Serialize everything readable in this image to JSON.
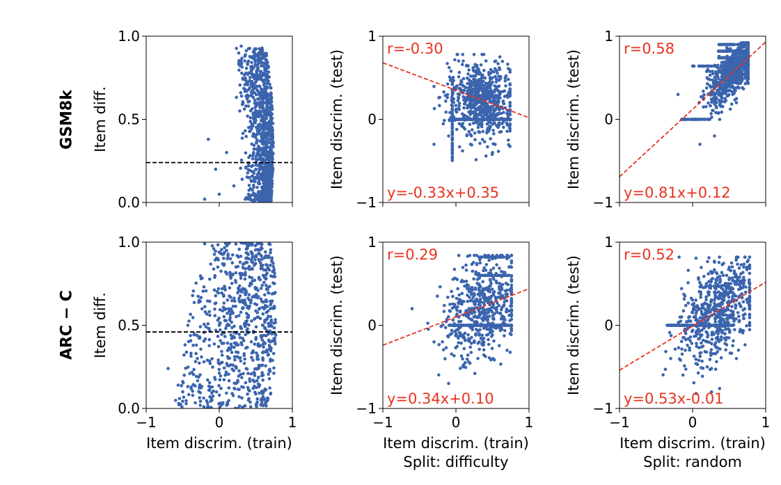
{
  "figure": {
    "row_labels": [
      "GSM8k",
      "ARC − C"
    ],
    "column_titles": [
      "",
      "Split: difficulty",
      "Split: random"
    ],
    "colors": {
      "points": "#3b64ad",
      "fit_line": "#e8321e",
      "threshold_line": "#000000"
    }
  },
  "chart_data": [
    {
      "type": "scatter",
      "row": "GSM8k",
      "col": 0,
      "xlabel": "",
      "ylabel": "Item diff.",
      "xlim": [
        -1,
        1
      ],
      "ylim": [
        0,
        1
      ],
      "xticks": [
        -1,
        0,
        1
      ],
      "yticks": [
        0.0,
        0.5,
        1.0
      ],
      "ytick_labels": [
        "0.0",
        "0.5",
        "1.0"
      ],
      "show_xtick_labels": false,
      "threshold_y": 0.24,
      "cloud": "gsm_diff",
      "points": [
        [
          0.3,
          0.94
        ],
        [
          0.35,
          0.88
        ],
        [
          0.4,
          0.85
        ],
        [
          0.45,
          0.8
        ],
        [
          0.5,
          0.75
        ],
        [
          0.55,
          0.7
        ],
        [
          0.6,
          0.62
        ],
        [
          0.65,
          0.55
        ],
        [
          0.7,
          0.45
        ],
        [
          0.72,
          0.35
        ],
        [
          0.6,
          0.3
        ],
        [
          0.5,
          0.2
        ],
        [
          0.4,
          0.15
        ],
        [
          0.2,
          0.1
        ],
        [
          0.0,
          0.05
        ],
        [
          -0.2,
          0.02
        ],
        [
          -0.15,
          0.38
        ],
        [
          0.1,
          0.3
        ],
        [
          -0.05,
          0.2
        ],
        [
          0.28,
          0.55
        ]
      ]
    },
    {
      "type": "scatter",
      "row": "GSM8k",
      "col": 1,
      "xlabel": "",
      "ylabel": "Item discrim. (test)",
      "xlim": [
        -1,
        1
      ],
      "ylim": [
        -1,
        1
      ],
      "xticks": [
        -1,
        0,
        1
      ],
      "yticks": [
        -1,
        0,
        1
      ],
      "ytick_labels": [
        "−1",
        "0",
        "1"
      ],
      "show_xtick_labels": false,
      "r_text": "r=-0.30",
      "fit_text": "y=-0.33x+0.35",
      "fit": {
        "slope": -0.33,
        "intercept": 0.35
      },
      "cloud": "gsm_diffsplit",
      "points": [
        [
          0.1,
          0.7
        ],
        [
          0.3,
          0.6
        ],
        [
          0.5,
          0.5
        ],
        [
          0.6,
          0.3
        ],
        [
          0.2,
          0.1
        ],
        [
          0.0,
          0.0
        ],
        [
          0.4,
          0.0
        ],
        [
          0.7,
          0.0
        ],
        [
          -0.1,
          -0.2
        ],
        [
          0.2,
          -0.3
        ],
        [
          0.5,
          -0.4
        ],
        [
          -0.3,
          -0.3
        ],
        [
          0.3,
          0.35
        ],
        [
          0.6,
          0.6
        ]
      ]
    },
    {
      "type": "scatter",
      "row": "GSM8k",
      "col": 2,
      "xlabel": "",
      "ylabel": "Item discrim. (test)",
      "xlim": [
        -1,
        1
      ],
      "ylim": [
        -1,
        1
      ],
      "xticks": [
        -1,
        0,
        1
      ],
      "yticks": [
        -1,
        0,
        1
      ],
      "ytick_labels": [
        "−1",
        "0",
        "1"
      ],
      "show_xtick_labels": false,
      "r_text": "r=0.58",
      "fit_text": "y=0.81x+0.12",
      "fit": {
        "slope": 0.81,
        "intercept": 0.12
      },
      "cloud": "gsm_random",
      "points": [
        [
          0.7,
          0.9
        ],
        [
          0.5,
          0.9
        ],
        [
          0.6,
          0.78
        ],
        [
          0.3,
          0.65
        ],
        [
          0.5,
          0.55
        ],
        [
          0.7,
          0.6
        ],
        [
          0.4,
          0.3
        ],
        [
          0.6,
          0.2
        ],
        [
          0.0,
          0.0
        ],
        [
          -0.1,
          0.0
        ],
        [
          0.1,
          -0.3
        ],
        [
          0.3,
          -0.2
        ],
        [
          -0.2,
          0.3
        ]
      ]
    },
    {
      "type": "scatter",
      "row": "ARC − C",
      "col": 0,
      "xlabel": "Item discrim. (train)",
      "ylabel": "Item diff.",
      "xlim": [
        -1,
        1
      ],
      "ylim": [
        0,
        1
      ],
      "xticks": [
        -1,
        0,
        1
      ],
      "yticks": [
        0.0,
        0.5,
        1.0
      ],
      "ytick_labels": [
        "0.0",
        "0.5",
        "1.0"
      ],
      "show_xtick_labels": true,
      "xtick_labels": [
        "−1",
        "0",
        "1"
      ],
      "threshold_y": 0.46,
      "cloud": "arc_diff",
      "points": [
        [
          -0.7,
          0.24
        ],
        [
          -0.5,
          0.1
        ],
        [
          -0.3,
          0.3
        ],
        [
          -0.2,
          0.99
        ],
        [
          0.1,
          0.95
        ],
        [
          0.4,
          0.9
        ],
        [
          0.6,
          0.8
        ],
        [
          0.7,
          0.6
        ],
        [
          0.7,
          0.4
        ],
        [
          0.6,
          0.2
        ],
        [
          0.4,
          0.05
        ],
        [
          0.1,
          0.02
        ],
        [
          -0.1,
          0.05
        ],
        [
          0.0,
          0.5
        ]
      ]
    },
    {
      "type": "scatter",
      "row": "ARC − C",
      "col": 1,
      "xlabel": "Item discrim. (train)",
      "ylabel": "Item discrim. (test)",
      "xlim": [
        -1,
        1
      ],
      "ylim": [
        -1,
        1
      ],
      "xticks": [
        -1,
        0,
        1
      ],
      "yticks": [
        -1,
        0,
        1
      ],
      "ytick_labels": [
        "−1",
        "0",
        "1"
      ],
      "show_xtick_labels": true,
      "xtick_labels": [
        "−1",
        "0",
        "1"
      ],
      "r_text": "r=0.29",
      "fit_text": "y=0.34x+0.10",
      "fit": {
        "slope": 0.34,
        "intercept": 0.1
      },
      "cloud": "arc_diffsplit",
      "points": [
        [
          0.5,
          0.8
        ],
        [
          0.7,
          0.8
        ],
        [
          0.4,
          0.6
        ],
        [
          0.6,
          0.6
        ],
        [
          0.2,
          0.4
        ],
        [
          0.0,
          0.0
        ],
        [
          0.3,
          0.0
        ],
        [
          0.7,
          0.0
        ],
        [
          -0.3,
          -0.2
        ],
        [
          0.1,
          -0.5
        ],
        [
          0.3,
          -0.4
        ],
        [
          -0.1,
          -0.7
        ],
        [
          -0.6,
          0.2
        ],
        [
          0.7,
          -0.3
        ]
      ]
    },
    {
      "type": "scatter",
      "row": "ARC − C",
      "col": 2,
      "xlabel": "Item discrim. (train)",
      "ylabel": "Item discrim. (test)",
      "xlim": [
        -1,
        1
      ],
      "ylim": [
        -1,
        1
      ],
      "xticks": [
        -1,
        0,
        1
      ],
      "yticks": [
        -1,
        0,
        1
      ],
      "ytick_labels": [
        "−1",
        "0",
        "1"
      ],
      "show_xtick_labels": true,
      "xtick_labels": [
        "−1",
        "0",
        "1"
      ],
      "r_text": "r=0.52",
      "fit_text": "y=0.53x-0.01",
      "fit": {
        "slope": 0.53,
        "intercept": -0.01
      },
      "cloud": "arc_random",
      "points": [
        [
          0.6,
          0.8
        ],
        [
          0.7,
          0.7
        ],
        [
          0.5,
          0.55
        ],
        [
          0.3,
          0.4
        ],
        [
          0.6,
          0.3
        ],
        [
          0.0,
          0.0
        ],
        [
          -0.3,
          0.0
        ],
        [
          0.3,
          0.0
        ],
        [
          -0.3,
          -0.4
        ],
        [
          0.2,
          -0.5
        ],
        [
          0.6,
          -0.4
        ],
        [
          -0.1,
          -0.3
        ]
      ]
    }
  ]
}
